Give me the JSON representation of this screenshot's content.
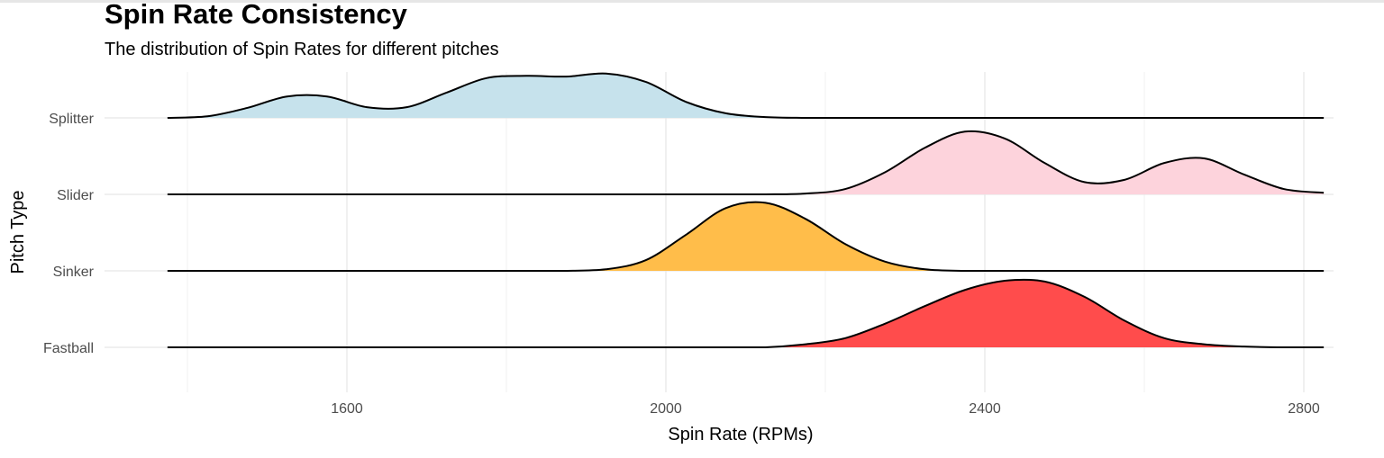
{
  "chart_data": {
    "type": "ridgeline",
    "title": "Spin Rate Consistency",
    "subtitle": "The distribution of Spin Rates for different pitches",
    "xlabel": "Spin Rate (RPMs)",
    "ylabel": "Pitch Type",
    "xlim": [
      1340,
      2850
    ],
    "xticks": [
      1600,
      2000,
      2400,
      2800
    ],
    "grid": true,
    "legend": "none",
    "x": [
      1375,
      1425,
      1475,
      1525,
      1575,
      1625,
      1675,
      1725,
      1775,
      1825,
      1875,
      1925,
      1975,
      2025,
      2075,
      2125,
      2175,
      2225,
      2275,
      2325,
      2375,
      2425,
      2475,
      2525,
      2575,
      2625,
      2675,
      2725,
      2775,
      2825
    ],
    "series": [
      {
        "name": "Fastball",
        "color": "#ff4c4c",
        "values": [
          0,
          0,
          0,
          0,
          0,
          0,
          0,
          0,
          0,
          0,
          0,
          0,
          0,
          0,
          0,
          0,
          0.04,
          0.12,
          0.31,
          0.54,
          0.75,
          0.87,
          0.86,
          0.66,
          0.35,
          0.12,
          0.04,
          0.01,
          0,
          0
        ]
      },
      {
        "name": "Sinker",
        "color": "#ffbd4a",
        "values": [
          0,
          0,
          0,
          0,
          0,
          0,
          0,
          0,
          0,
          0,
          0,
          0.02,
          0.14,
          0.47,
          0.82,
          0.89,
          0.68,
          0.35,
          0.12,
          0.02,
          0,
          0,
          0,
          0,
          0,
          0,
          0,
          0,
          0,
          0
        ]
      },
      {
        "name": "Slider",
        "color": "#fdd3dc",
        "values": [
          0,
          0,
          0,
          0,
          0,
          0,
          0,
          0,
          0,
          0,
          0,
          0,
          0,
          0,
          0,
          0,
          0.01,
          0.07,
          0.29,
          0.61,
          0.82,
          0.73,
          0.41,
          0.16,
          0.19,
          0.41,
          0.47,
          0.26,
          0.07,
          0.02
        ]
      },
      {
        "name": "Splitter",
        "color": "#c6e2ec",
        "values": [
          0,
          0.02,
          0.13,
          0.28,
          0.28,
          0.14,
          0.14,
          0.33,
          0.52,
          0.55,
          0.54,
          0.58,
          0.47,
          0.21,
          0.06,
          0.01,
          0,
          0,
          0,
          0,
          0,
          0,
          0,
          0,
          0,
          0,
          0,
          0,
          0,
          0
        ]
      }
    ]
  }
}
